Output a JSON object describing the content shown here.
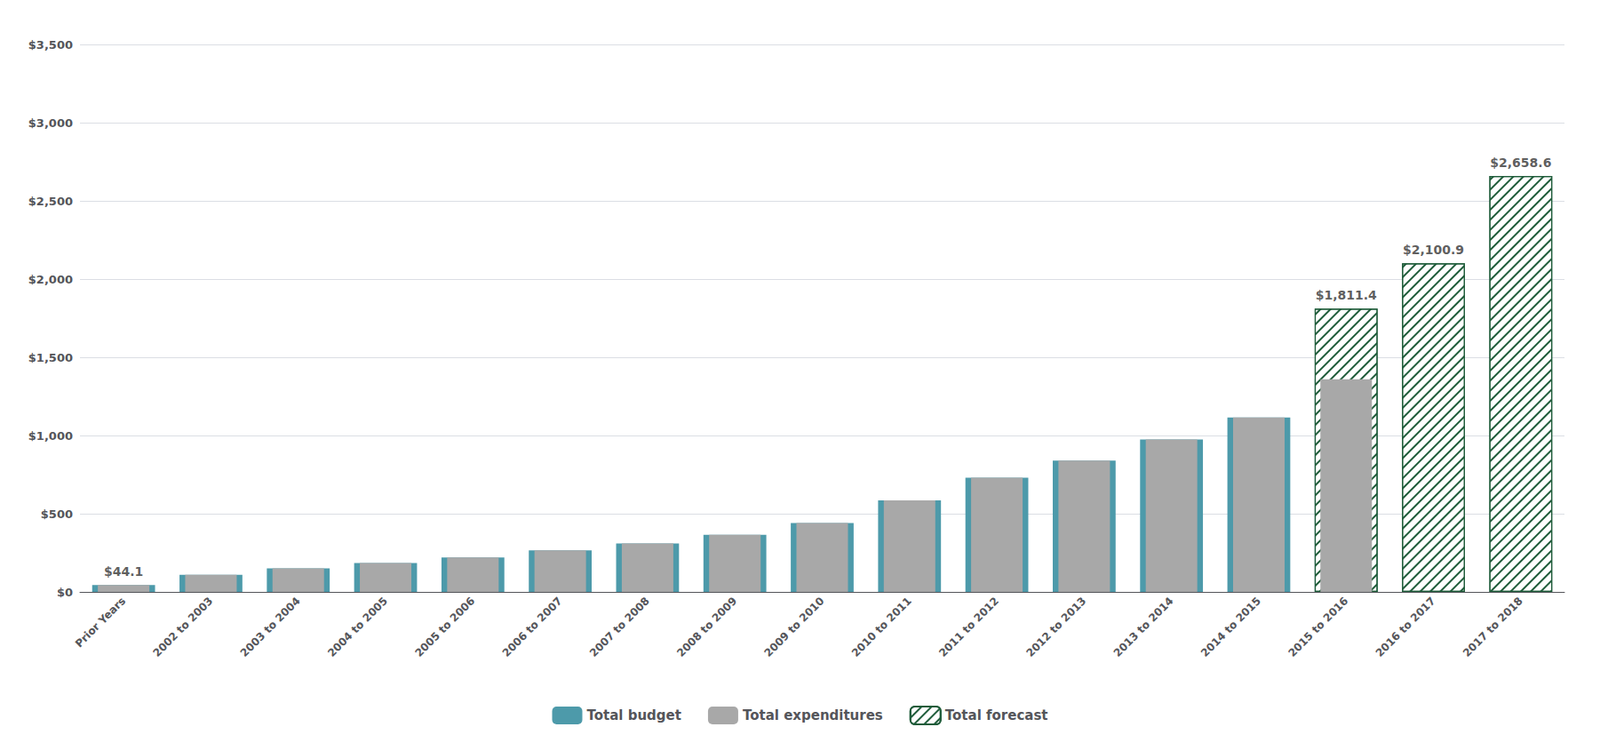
{
  "chart_data": {
    "type": "bar",
    "categories": [
      "Prior Years",
      "2002 to 2003",
      "2003 to 2004",
      "2004 to 2005",
      "2005 to 2006",
      "2006 to 2007",
      "2007 to 2008",
      "2008 to 2009",
      "2009 to 2010",
      "2010 to 2011",
      "2011 to 2012",
      "2012 to 2013",
      "2013 to 2014",
      "2014 to 2015",
      "2015 to 2016",
      "2016 to 2017",
      "2017 to 2018"
    ],
    "series": [
      {
        "name": "Total budget",
        "color": "#4d9aaa",
        "values": [
          44.1,
          110,
          150,
          185,
          220,
          265,
          310,
          365,
          440,
          585,
          730,
          840,
          975,
          1115,
          1360,
          null,
          null
        ]
      },
      {
        "name": "Total expenditures",
        "color": "#a8a8a8",
        "values": [
          44.1,
          110,
          150,
          185,
          220,
          265,
          310,
          365,
          440,
          585,
          730,
          840,
          975,
          1115,
          1360,
          null,
          null
        ]
      },
      {
        "name": "Total forecast",
        "color": "#1f5c3a",
        "values": [
          null,
          null,
          null,
          null,
          null,
          null,
          null,
          null,
          null,
          null,
          null,
          null,
          null,
          null,
          1811.4,
          2100.9,
          2658.6
        ]
      }
    ],
    "ylim": [
      0,
      3500
    ],
    "yticks": [
      {
        "value": 0,
        "label": "$0"
      },
      {
        "value": 500,
        "label": "$500"
      },
      {
        "value": 1000,
        "label": "$1,000"
      },
      {
        "value": 1500,
        "label": "$1,500"
      },
      {
        "value": 2000,
        "label": "$2,000"
      },
      {
        "value": 2500,
        "label": "$2,500"
      },
      {
        "value": 3000,
        "label": "$3,000"
      },
      {
        "value": 3500,
        "label": "$3,500"
      }
    ],
    "grid": true,
    "legend": "bottom",
    "annotations": [
      {
        "category": "Prior Years",
        "value": 44.1,
        "text": "$44.1"
      },
      {
        "category": "2015 to 2016",
        "value": 1811.4,
        "text": "$1,811.4"
      },
      {
        "category": "2016 to 2017",
        "value": 2100.9,
        "text": "$2,100.9"
      },
      {
        "category": "2017 to 2018",
        "value": 2658.6,
        "text": "$2,658.6"
      }
    ]
  }
}
